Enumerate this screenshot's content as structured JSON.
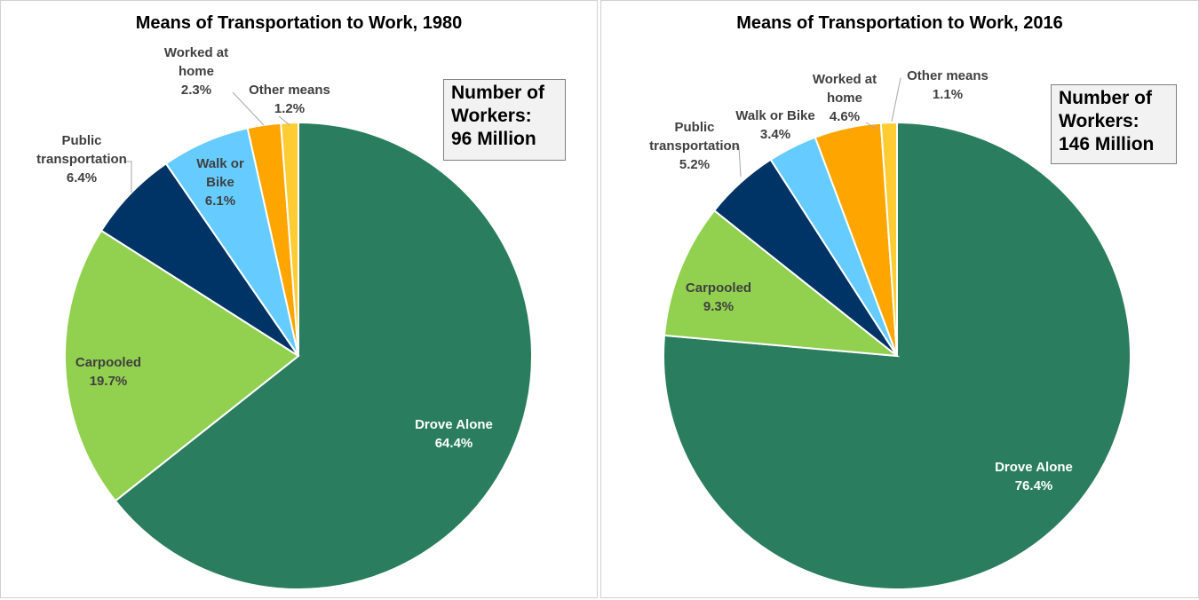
{
  "colors": {
    "Drove Alone": "#2a7d5f",
    "Carpooled": "#92d050",
    "Public transportation": "#003366",
    "Walk or Bike": "#66ccff",
    "Worked at home": "#ffa500",
    "Other means": "#ffcc33"
  },
  "chart_data": [
    {
      "type": "pie",
      "title": "Means of Transportation to Work, 1980",
      "box": {
        "line1": "Number of",
        "line2": "Workers:",
        "line3": "96 Million"
      },
      "slices": [
        {
          "label": "Drove Alone",
          "display": [
            "Drove Alone",
            "64.4%"
          ],
          "value": 64.4
        },
        {
          "label": "Carpooled",
          "display": [
            "Carpooled",
            "19.7%"
          ],
          "value": 19.7
        },
        {
          "label": "Public transportation",
          "display": [
            "Public",
            "transportation",
            "6.4%"
          ],
          "value": 6.4
        },
        {
          "label": "Walk or Bike",
          "display": [
            "Walk or",
            "Bike",
            "6.1%"
          ],
          "value": 6.1
        },
        {
          "label": "Worked at home",
          "display": [
            "Worked at",
            "home",
            "2.3%"
          ],
          "value": 2.3
        },
        {
          "label": "Other means",
          "display": [
            "Other means",
            "1.2%"
          ],
          "value": 1.2
        }
      ]
    },
    {
      "type": "pie",
      "title": "Means of Transportation to Work, 2016",
      "box": {
        "line1": "Number of",
        "line2": "Workers:",
        "line3": "146 Million"
      },
      "slices": [
        {
          "label": "Drove Alone",
          "display": [
            "Drove Alone",
            "76.4%"
          ],
          "value": 76.4
        },
        {
          "label": "Carpooled",
          "display": [
            "Carpooled",
            "9.3%"
          ],
          "value": 9.3
        },
        {
          "label": "Public transportation",
          "display": [
            "Public",
            "transportation",
            "5.2%"
          ],
          "value": 5.2
        },
        {
          "label": "Walk or Bike",
          "display": [
            "Walk or Bike",
            "3.4%"
          ],
          "value": 3.4
        },
        {
          "label": "Worked at home",
          "display": [
            "Worked at",
            "home",
            "4.6%"
          ],
          "value": 4.6
        },
        {
          "label": "Other means",
          "display": [
            "Other means",
            "1.1%"
          ],
          "value": 1.1
        }
      ]
    }
  ]
}
